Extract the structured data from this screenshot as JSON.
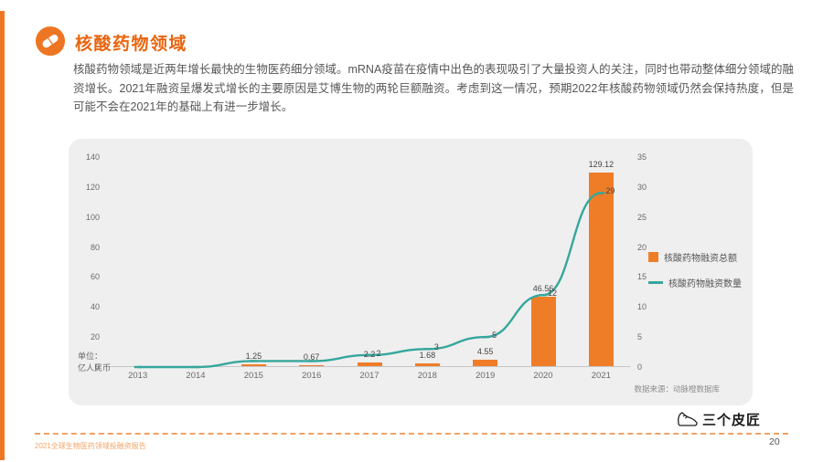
{
  "page": {
    "title": "核酸药物领域",
    "body_text": "核酸药物领域是近两年增长最快的生物医药细分领域。mRNA疫苗在疫情中出色的表现吸引了大量投资人的关注，同时也带动整体细分领域的融资增长。2021年融资呈爆发式增长的主要原因是艾博生物的两轮巨额融资。考虑到这一情况，预期2022年核酸药物领域仍然会保持热度，但是可能不会在2021年的基础上有进一步增长。",
    "footer_text": "2021全球生物医药领域投融资报告",
    "page_number": "20",
    "logo_text": "三个皮匠"
  },
  "chart": {
    "unit_line1": "单位：",
    "unit_line2": "亿人民币",
    "source": "数据来源：动脉橙数据库"
  },
  "chart_data": {
    "type": "bar+line",
    "categories": [
      "2013",
      "2014",
      "2015",
      "2016",
      "2017",
      "2018",
      "2019",
      "2020",
      "2021"
    ],
    "series": [
      {
        "name": "核酸药物融资总额",
        "type": "bar",
        "axis": "left",
        "color": "#ef7d28",
        "values": [
          0,
          0,
          1.25,
          0.67,
          2.2,
          1.68,
          4.55,
          46.56,
          129.12
        ],
        "labels": [
          "",
          "",
          "1.25",
          "0.67",
          "2.2",
          "1.68",
          "4.55",
          "46.56",
          "129.12"
        ]
      },
      {
        "name": "核酸药物融资数量",
        "type": "line",
        "axis": "right",
        "color": "#36a79c",
        "values": [
          0,
          0,
          1,
          1,
          2,
          3,
          5,
          12,
          29
        ],
        "labels": [
          "",
          "",
          "",
          "",
          "2",
          "3",
          "5",
          "12",
          "29"
        ]
      }
    ],
    "left_axis": {
      "min": 0,
      "max": 140,
      "ticks": [
        0,
        20,
        40,
        60,
        80,
        100,
        120,
        140
      ],
      "unit": "单位：亿人民币"
    },
    "right_axis": {
      "min": 0,
      "max": 35,
      "ticks": [
        0,
        5,
        10,
        15,
        20,
        25,
        30,
        35
      ]
    },
    "grid": false,
    "legend_position": "right"
  },
  "colors": {
    "accent_orange": "#ee7623",
    "teal": "#36a79c",
    "panel_bg": "#efefef",
    "body_text": "#595959"
  }
}
